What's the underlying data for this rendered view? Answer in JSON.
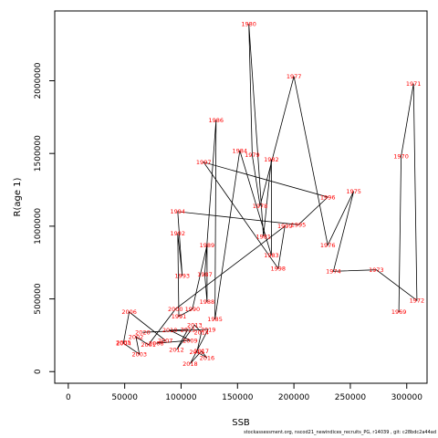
{
  "chart_data": {
    "type": "line",
    "title": "",
    "xlabel": "SSB",
    "ylabel": "R(age 1)",
    "xlim": [
      -12000,
      318000
    ],
    "ylim": [
      -80000,
      2480000
    ],
    "xticks": [
      0,
      50000,
      100000,
      150000,
      200000,
      250000,
      300000
    ],
    "xtick_labels": [
      "0",
      "50000",
      "100000",
      "150000",
      "200000",
      "250000",
      "300000"
    ],
    "yticks": [
      0,
      500000,
      1000000,
      1500000,
      2000000
    ],
    "ytick_labels": [
      "0",
      "500000",
      "1000000",
      "1500000",
      "2000000"
    ],
    "grid": false,
    "line_color": "#000000",
    "label_color": "#ff0000",
    "points": [
      {
        "year": "1969",
        "x": 293000,
        "y": 410000
      },
      {
        "year": "1970",
        "x": 295000,
        "y": 1480000
      },
      {
        "year": "1971",
        "x": 306000,
        "y": 1980000
      },
      {
        "year": "1972",
        "x": 309000,
        "y": 490000
      },
      {
        "year": "1973",
        "x": 273000,
        "y": 700000
      },
      {
        "year": "1974",
        "x": 235000,
        "y": 690000
      },
      {
        "year": "1975",
        "x": 253000,
        "y": 1240000
      },
      {
        "year": "1976",
        "x": 230000,
        "y": 870000
      },
      {
        "year": "1977",
        "x": 200000,
        "y": 2030000
      },
      {
        "year": "1978",
        "x": 170000,
        "y": 1140000
      },
      {
        "year": "1979",
        "x": 163000,
        "y": 1490000
      },
      {
        "year": "1980",
        "x": 160000,
        "y": 2390000
      },
      {
        "year": "1981",
        "x": 173000,
        "y": 930000
      },
      {
        "year": "1982",
        "x": 180000,
        "y": 1460000
      },
      {
        "year": "1983",
        "x": 180000,
        "y": 800000
      },
      {
        "year": "1984",
        "x": 152000,
        "y": 1520000
      },
      {
        "year": "1985",
        "x": 130000,
        "y": 360000
      },
      {
        "year": "1986",
        "x": 131000,
        "y": 1730000
      },
      {
        "year": "1987",
        "x": 121000,
        "y": 670000
      },
      {
        "year": "1988",
        "x": 123000,
        "y": 480000
      },
      {
        "year": "1989",
        "x": 123000,
        "y": 870000
      },
      {
        "year": "1990",
        "x": 110000,
        "y": 430000
      },
      {
        "year": "1991",
        "x": 98000,
        "y": 380000
      },
      {
        "year": "1992",
        "x": 97000,
        "y": 950000
      },
      {
        "year": "1993",
        "x": 101000,
        "y": 660000
      },
      {
        "year": "1994",
        "x": 97000,
        "y": 1100000
      },
      {
        "year": "1995",
        "x": 204000,
        "y": 1010000
      },
      {
        "year": "1996",
        "x": 230000,
        "y": 1200000
      },
      {
        "year": "1997",
        "x": 120000,
        "y": 1440000
      },
      {
        "year": "1998",
        "x": 186000,
        "y": 710000
      },
      {
        "year": "1999",
        "x": 192000,
        "y": 1000000
      },
      {
        "year": "2000",
        "x": 95000,
        "y": 430000
      },
      {
        "year": "2001",
        "x": 71000,
        "y": 185000
      },
      {
        "year": "2002",
        "x": 60000,
        "y": 240000
      },
      {
        "year": "2003",
        "x": 63000,
        "y": 120000
      },
      {
        "year": "2004",
        "x": 49000,
        "y": 195000
      },
      {
        "year": "2005",
        "x": 49000,
        "y": 200000
      },
      {
        "year": "2006",
        "x": 54000,
        "y": 410000
      },
      {
        "year": "2007",
        "x": 86000,
        "y": 215000
      },
      {
        "year": "2008",
        "x": 78000,
        "y": 195000
      },
      {
        "year": "2009",
        "x": 108000,
        "y": 215000
      },
      {
        "year": "2010",
        "x": 90000,
        "y": 285000
      },
      {
        "year": "2011",
        "x": 106000,
        "y": 290000
      },
      {
        "year": "2012",
        "x": 96000,
        "y": 150000
      },
      {
        "year": "2013",
        "x": 112000,
        "y": 320000
      },
      {
        "year": "2014",
        "x": 118000,
        "y": 270000
      },
      {
        "year": "2015",
        "x": 114000,
        "y": 135000
      },
      {
        "year": "2016",
        "x": 123000,
        "y": 95000
      },
      {
        "year": "2017",
        "x": 118000,
        "y": 140000
      },
      {
        "year": "2018",
        "x": 108000,
        "y": 55000
      },
      {
        "year": "2019",
        "x": 124000,
        "y": 290000
      },
      {
        "year": "2020",
        "x": 66000,
        "y": 270000
      }
    ]
  },
  "footer": "stockassessment.org,  nscod21_newindices_recruits_PG,  r14039 ,  git: c28bdc2a44ad"
}
